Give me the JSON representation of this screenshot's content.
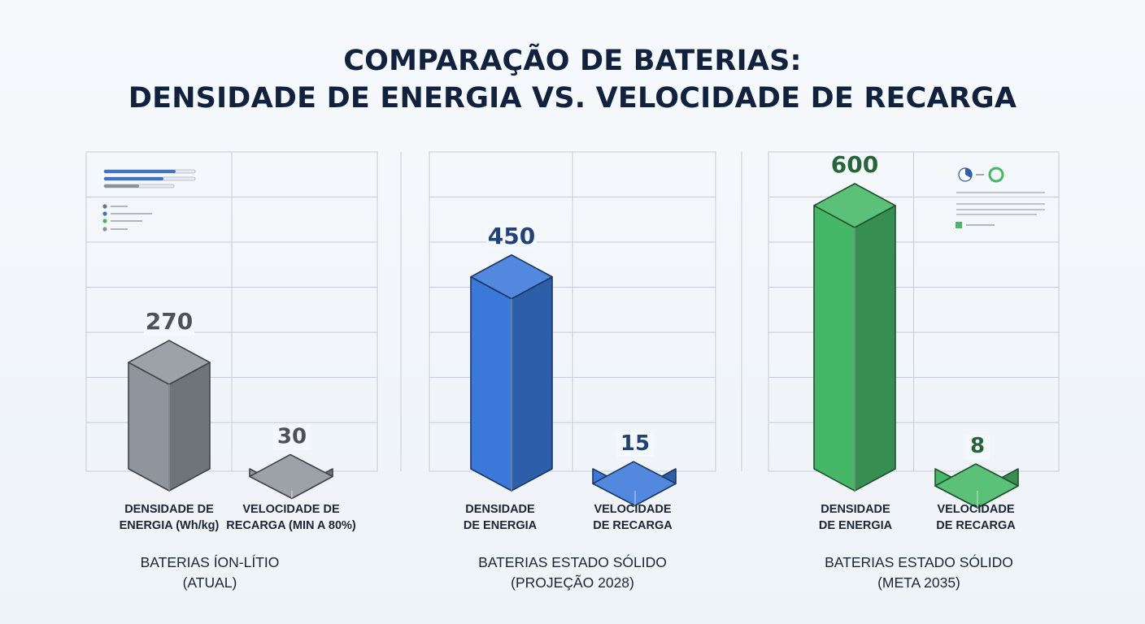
{
  "title": {
    "line1": "COMPARAÇÃO DE BATERIAS:",
    "line2": "DENSIDADE DE ENERGIA VS. VELOCIDADE DE RECARGA"
  },
  "colors": {
    "gray": "#8e959c",
    "blue": "#3a78d9",
    "green": "#45b766",
    "text": "#1b2533",
    "grid": "#c6ccd5"
  },
  "chart_data": {
    "type": "bar",
    "title": "COMPARAÇÃO DE BATERIAS: DENSIDADE DE ENERGIA VS. VELOCIDADE DE RECARGA",
    "groups": [
      {
        "label_line1": "BATERIAS ÍON-LÍTIO",
        "label_line2": "(ATUAL)",
        "color": "gray",
        "bars": [
          {
            "label_line1": "DENSIDADE DE",
            "label_line2": "ENERGIA (Wh/kg)",
            "value": 270
          },
          {
            "label_line1": "VELOCIDADE DE",
            "label_line2": "RECARGA (MIN A 80%)",
            "value": 30
          }
        ]
      },
      {
        "label_line1": "BATERIAS ESTADO SÓLIDO",
        "label_line2": "(PROJEÇÃO 2028)",
        "color": "blue",
        "bars": [
          {
            "label_line1": "DENSIDADE",
            "label_line2": "DE ENERGIA",
            "value": 450
          },
          {
            "label_line1": "VELOCIDADE",
            "label_line2": "DE RECARGA",
            "value": 15
          }
        ]
      },
      {
        "label_line1": "BATERIAS ESTADO SÓLIDO",
        "label_line2": "(META 2035)",
        "color": "green",
        "bars": [
          {
            "label_line1": "DENSIDADE",
            "label_line2": "DE ENERGIA",
            "value": 600
          },
          {
            "label_line1": "VELOCIDADE",
            "label_line2": "DE RECARGA",
            "value": 8
          }
        ]
      }
    ],
    "grid": true,
    "legend": "none"
  }
}
